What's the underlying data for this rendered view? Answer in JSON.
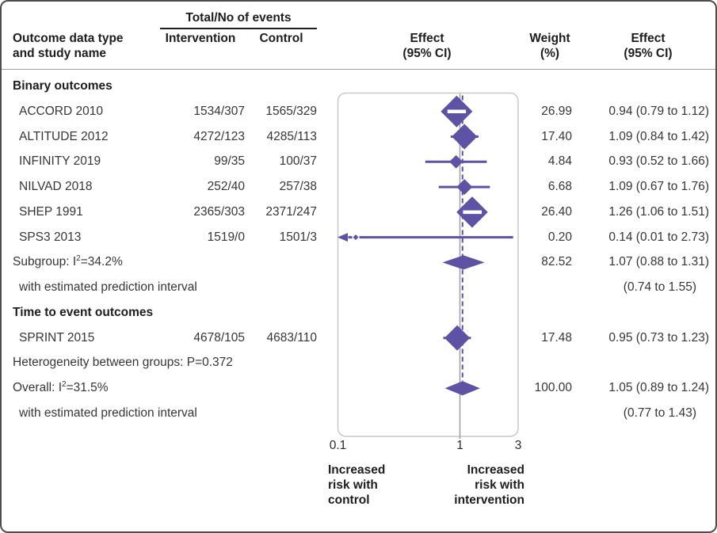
{
  "header": {
    "events_group": "Total/No of events",
    "outcome_line1": "Outcome data type",
    "outcome_line2": "and study name",
    "intervention": "Intervention",
    "control": "Control",
    "effect_plot_line1": "Effect",
    "effect_plot_line2": "(95% CI)",
    "weight_line1": "Weight",
    "weight_line2": "(%)",
    "effect_text_line1": "Effect",
    "effect_text_line2": "(95% CI)"
  },
  "colors": {
    "accent": "#5e52a5",
    "null_line": "#9e9e9e",
    "panel_border": "#c9c9c9",
    "stripe": "#ffffff"
  },
  "chart_data": {
    "type": "forest",
    "effect_measure": "risk ratio (95% CI), log scale",
    "x_axis": {
      "scale": "log",
      "min": 0.1,
      "max": 3,
      "ticks": [
        0.1,
        1,
        3
      ],
      "tick_labels": [
        "0.1",
        "1",
        "3"
      ],
      "null_line": 1,
      "overall_dashed_line": 1.05
    },
    "direction_labels": {
      "left": [
        "Increased",
        "risk with",
        "control"
      ],
      "right": [
        "Increased",
        "risk with",
        "intervention"
      ]
    },
    "rows": [
      {
        "kind": "section",
        "label": "Binary outcomes"
      },
      {
        "kind": "study",
        "label": "ACCORD 2010",
        "intervention": "1534/307",
        "control": "1565/329",
        "est": 0.94,
        "lo": 0.79,
        "hi": 1.12,
        "weight": 26.99,
        "weight_text": "26.99",
        "effect_text": "0.94 (0.79 to 1.12)"
      },
      {
        "kind": "study",
        "label": "ALTITUDE 2012",
        "intervention": "4272/123",
        "control": "4285/113",
        "est": 1.09,
        "lo": 0.84,
        "hi": 1.42,
        "weight": 17.4,
        "weight_text": "17.40",
        "effect_text": "1.09 (0.84 to 1.42)"
      },
      {
        "kind": "study",
        "label": "INFINITY 2019",
        "intervention": "99/35",
        "control": "100/37",
        "est": 0.93,
        "lo": 0.52,
        "hi": 1.66,
        "weight": 4.84,
        "weight_text": "4.84",
        "effect_text": "0.93 (0.52 to 1.66)"
      },
      {
        "kind": "study",
        "label": "NILVAD 2018",
        "intervention": "252/40",
        "control": "257/38",
        "est": 1.09,
        "lo": 0.67,
        "hi": 1.76,
        "weight": 6.68,
        "weight_text": "6.68",
        "effect_text": "1.09 (0.67 to 1.76)"
      },
      {
        "kind": "study",
        "label": "SHEP 1991",
        "intervention": "2365/303",
        "control": "2371/247",
        "est": 1.26,
        "lo": 1.06,
        "hi": 1.51,
        "weight": 26.4,
        "weight_text": "26.40",
        "effect_text": "1.26 (1.06 to 1.51)"
      },
      {
        "kind": "study",
        "label": "SPS3 2013",
        "intervention": "1519/0",
        "control": "1501/3",
        "est": 0.14,
        "lo": 0.01,
        "hi": 2.73,
        "weight": 0.2,
        "weight_text": "0.20",
        "effect_text": "0.14 (0.01 to 2.73)"
      },
      {
        "kind": "summary",
        "label": "Subgroup: I²=34.2%",
        "est": 1.07,
        "lo": 0.88,
        "hi": 1.31,
        "weight_text": "82.52",
        "effect_text": "1.07 (0.88 to 1.31)"
      },
      {
        "kind": "note",
        "indent": true,
        "label": "with estimated prediction interval",
        "effect_text": "(0.74 to 1.55)"
      },
      {
        "kind": "section",
        "label": "Time to event outcomes"
      },
      {
        "kind": "study",
        "label": "SPRINT 2015",
        "intervention": "4678/105",
        "control": "4683/110",
        "est": 0.95,
        "lo": 0.73,
        "hi": 1.23,
        "weight": 17.48,
        "weight_text": "17.48",
        "effect_text": "0.95 (0.73 to 1.23)"
      },
      {
        "kind": "note",
        "label": "Heterogeneity between groups: P=0.372"
      },
      {
        "kind": "summary",
        "label": "Overall: I²=31.5%",
        "est": 1.05,
        "lo": 0.89,
        "hi": 1.24,
        "weight_text": "100.00",
        "effect_text": "1.05 (0.89 to 1.24)"
      },
      {
        "kind": "note",
        "indent": true,
        "label": "with estimated prediction interval",
        "effect_text": "(0.77 to 1.43)"
      }
    ]
  }
}
